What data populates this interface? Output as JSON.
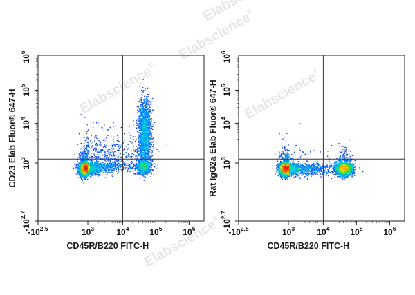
{
  "watermark": "Elabscience",
  "watermark_mark": "®",
  "chart_data": [
    {
      "type": "scatter",
      "style": "flow-cytometry-pseudocolor-density",
      "xlabel": "CD45R/B220 FITC-H",
      "ylabel": "CD23 Elab Fluor® 647-H",
      "x_scale": "biexponential",
      "y_scale": "biexponential",
      "xlim_exp": [
        -2.5,
        6
      ],
      "ylim_exp": [
        -2.7,
        6
      ],
      "x_ticks": [
        {
          "base": "-10",
          "exp": "2.5"
        },
        {
          "base": "10",
          "exp": "3"
        },
        {
          "base": "10",
          "exp": "4"
        },
        {
          "base": "10",
          "exp": "5"
        },
        {
          "base": "10",
          "exp": "6"
        }
      ],
      "y_ticks": [
        {
          "base": "-10",
          "exp": "2.7"
        },
        {
          "base": "10",
          "exp": "3"
        },
        {
          "base": "10",
          "exp": "4"
        },
        {
          "base": "10",
          "exp": "5"
        },
        {
          "base": "10",
          "exp": "6"
        }
      ],
      "quadrant_gate": {
        "x": 4.0,
        "y": 3.1
      },
      "populations": [
        {
          "x": 2.7,
          "y": 2.5,
          "sx": 0.35,
          "sy": 0.35,
          "n": 2600
        },
        {
          "x": 4.65,
          "y": 3.75,
          "sx": 0.1,
          "sy": 0.48,
          "n": 1700
        },
        {
          "x": 4.62,
          "y": 2.7,
          "sx": 0.12,
          "sy": 0.4,
          "n": 700
        },
        {
          "x": 3.5,
          "y": 3.0,
          "sx": 0.55,
          "sy": 0.4,
          "n": 900
        }
      ]
    },
    {
      "type": "scatter",
      "style": "flow-cytometry-pseudocolor-density",
      "xlabel": "CD45R/B220 FITC-H",
      "ylabel": "Rat IgG2a Elab Fluor® 647-H",
      "x_scale": "biexponential",
      "y_scale": "biexponential",
      "xlim_exp": [
        -2.5,
        6
      ],
      "ylim_exp": [
        -2.7,
        6
      ],
      "x_ticks": [
        {
          "base": "-10",
          "exp": "2.5"
        },
        {
          "base": "10",
          "exp": "3"
        },
        {
          "base": "10",
          "exp": "4"
        },
        {
          "base": "10",
          "exp": "5"
        },
        {
          "base": "10",
          "exp": "6"
        }
      ],
      "y_ticks": [
        {
          "base": "-10",
          "exp": "2.7"
        },
        {
          "base": "10",
          "exp": "3"
        },
        {
          "base": "10",
          "exp": "4"
        },
        {
          "base": "10",
          "exp": "5"
        },
        {
          "base": "10",
          "exp": "6"
        }
      ],
      "quadrant_gate": {
        "x": 4.0,
        "y": 3.1
      },
      "populations": [
        {
          "x": 2.65,
          "y": 2.5,
          "sx": 0.35,
          "sy": 0.35,
          "n": 2600
        },
        {
          "x": 4.62,
          "y": 2.5,
          "sx": 0.13,
          "sy": 0.33,
          "n": 2000
        },
        {
          "x": 3.5,
          "y": 2.5,
          "sx": 0.5,
          "sy": 0.35,
          "n": 600
        }
      ]
    }
  ]
}
